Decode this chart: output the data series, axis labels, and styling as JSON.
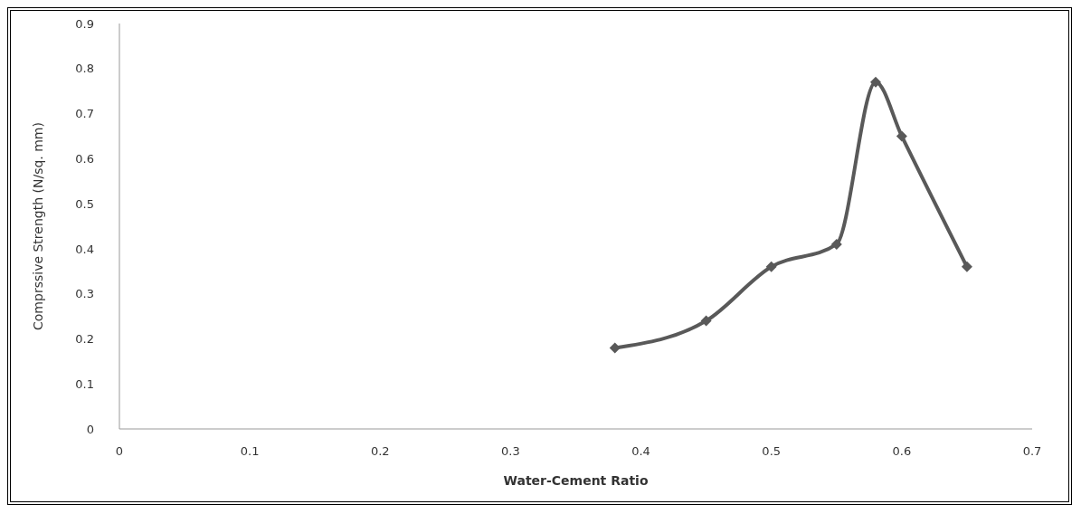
{
  "chart_data": {
    "type": "line",
    "xlabel": "Water-Cement Ratio",
    "ylabel": "Comprssive Strength (N/sq. mm)",
    "x": [
      0.38,
      0.45,
      0.5,
      0.55,
      0.58,
      0.6,
      0.65
    ],
    "series": [
      {
        "color": "#595959",
        "values": [
          0.18,
          0.24,
          0.36,
          0.41,
          0.77,
          0.65,
          0.36
        ]
      }
    ],
    "xlim": [
      0,
      0.7
    ],
    "xticks": [
      0,
      0.1,
      0.2,
      0.3,
      0.4,
      0.5,
      0.6,
      0.7
    ],
    "ylim": [
      0,
      0.9
    ],
    "yticks": [
      0,
      0.1,
      0.2,
      0.3,
      0.4,
      0.5,
      0.6,
      0.7,
      0.8,
      0.9
    ],
    "grid": false,
    "legend": false,
    "marker": "diamond",
    "line_style": "solid"
  }
}
